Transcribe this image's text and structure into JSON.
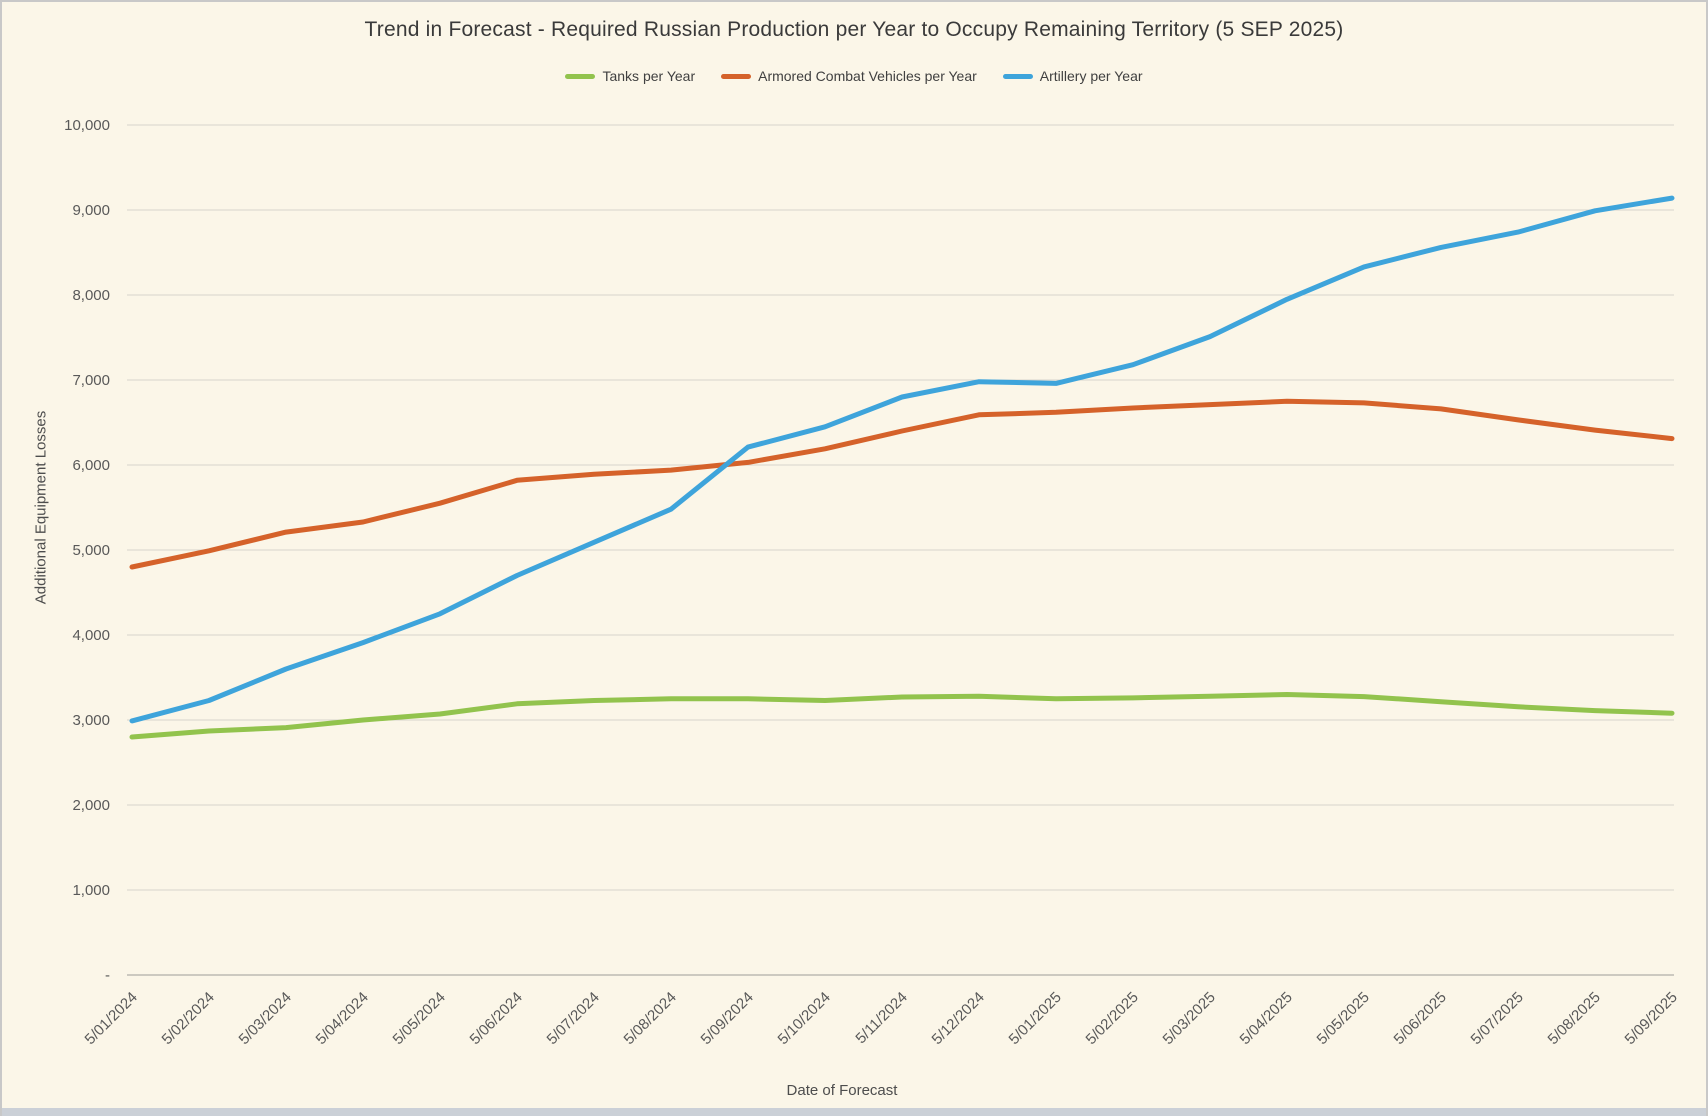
{
  "window": {
    "background_color": "#FBF6E8",
    "bottom_edge_color": "#cbd0d7"
  },
  "chart_data": {
    "type": "line",
    "title": "Trend in Forecast - Required Russian Production per Year to Occupy Remaining Territory (5 SEP 2025)",
    "xlabel": "Date of Forecast",
    "ylabel": "Additional Equipment Losses",
    "ylim": [
      0,
      10000
    ],
    "ytick_step": 1000,
    "y_tick_labels": [
      "-",
      "1,000",
      "2,000",
      "3,000",
      "4,000",
      "5,000",
      "6,000",
      "7,000",
      "8,000",
      "9,000",
      "10,000"
    ],
    "grid": "horizontal",
    "legend_position": "top",
    "gridline_color": "#D7D4CC",
    "axis_line_color": "#BDBAB3",
    "tick_label_color": "#595959",
    "categories": [
      "5/01/2024",
      "5/02/2024",
      "5/03/2024",
      "5/04/2024",
      "5/05/2024",
      "5/06/2024",
      "5/07/2024",
      "5/08/2024",
      "5/09/2024",
      "5/10/2024",
      "5/11/2024",
      "5/12/2024",
      "5/01/2025",
      "5/02/2025",
      "5/03/2025",
      "5/04/2025",
      "5/05/2025",
      "5/06/2025",
      "5/07/2025",
      "5/08/2025",
      "5/09/2025"
    ],
    "series": [
      {
        "name": "Tanks per Year",
        "color": "#92C34D",
        "values": [
          2800,
          2870,
          2910,
          3000,
          3070,
          3190,
          3230,
          3250,
          3250,
          3230,
          3270,
          3280,
          3250,
          3260,
          3280,
          3300,
          3275,
          3215,
          3155,
          3110,
          3080
        ]
      },
      {
        "name": "Armored Combat Vehicles per Year",
        "color": "#D5622A",
        "values": [
          4800,
          4990,
          5210,
          5330,
          5550,
          5820,
          5890,
          5940,
          6030,
          6190,
          6400,
          6590,
          6620,
          6670,
          6710,
          6750,
          6730,
          6660,
          6530,
          6410,
          6310
        ]
      },
      {
        "name": "Artillery per Year",
        "color": "#3EA4DB",
        "values": [
          2990,
          3230,
          3600,
          3910,
          4250,
          4700,
          5090,
          5480,
          6210,
          6450,
          6800,
          6980,
          6960,
          7180,
          7510,
          7950,
          8330,
          8560,
          8740,
          8990,
          9140
        ]
      }
    ]
  }
}
